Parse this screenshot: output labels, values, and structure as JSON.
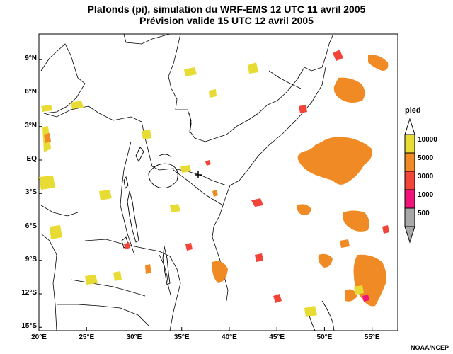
{
  "title": {
    "line1": "Plafonds (pi), simulation du WRF-EMS 12 UTC 11 avril 2005",
    "line2": "Prévision valide 15 UTC 12 avril 2005"
  },
  "legend": {
    "title": "pied",
    "items": [
      {
        "label": "10000",
        "color": "#e8dc34"
      },
      {
        "label": "5000",
        "color": "#f08a24"
      },
      {
        "label": "3000",
        "color": "#f2453a"
      },
      {
        "label": "1000",
        "color": "#f0147a"
      },
      {
        "label": "500",
        "color": "#a8a8a8"
      }
    ]
  },
  "axes": {
    "lon_labels": [
      "20°E",
      "25°E",
      "30°E",
      "35°E",
      "40°E",
      "45°E",
      "50°E",
      "55°E"
    ],
    "lon_values": [
      20,
      25,
      30,
      35,
      40,
      45,
      50,
      55
    ],
    "lat_labels": [
      "9°N",
      "6°N",
      "3°N",
      "EQ",
      "3°S",
      "6°S",
      "9°S",
      "12°S",
      "15°S"
    ],
    "lat_values": [
      9,
      6,
      3,
      0,
      -3,
      -6,
      -9,
      -12,
      -15
    ]
  },
  "colors": {
    "yellow": "#e8dc34",
    "orange": "#f08a24",
    "red": "#f2453a",
    "magenta": "#f0147a",
    "gray": "#a8a8a8"
  },
  "credit": "NOAA/NCEP"
}
